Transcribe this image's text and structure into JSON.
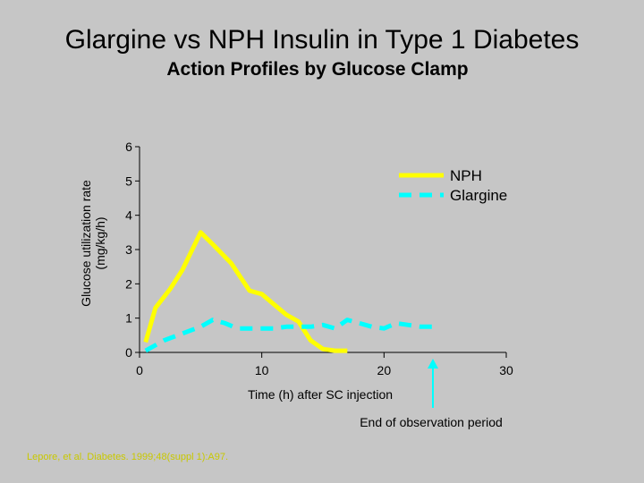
{
  "title": "Glargine vs NPH Insulin in Type 1 Diabetes",
  "subtitle": "Action Profiles by Glucose Clamp",
  "citation": "Lepore, et al. Diabetes. 1999;48(suppl 1):A97.",
  "annotation": "End of observation period",
  "colors": {
    "background": "#c6c6c6",
    "nph": "#ffff00",
    "glargine": "#00ffff",
    "arrow": "#00ffff"
  },
  "chart_data": {
    "type": "line",
    "xlabel": "Time (h) after SC injection",
    "ylabel_lines": [
      "Glucose utilization rate",
      "(mg/kg/h)"
    ],
    "xlim": [
      0,
      30
    ],
    "ylim": [
      0,
      6
    ],
    "xticks": [
      0,
      10,
      20,
      30
    ],
    "yticks": [
      0,
      1,
      2,
      3,
      4,
      5,
      6
    ],
    "legend_position": "top-right",
    "annotation_x": 24,
    "series": [
      {
        "name": "NPH",
        "style": "solid",
        "x": [
          0.5,
          1.3,
          2.5,
          3.5,
          5,
          6,
          7.5,
          9,
          10,
          11,
          12,
          13,
          14,
          15,
          16,
          17
        ],
        "y": [
          0.3,
          1.3,
          1.85,
          2.4,
          3.5,
          3.15,
          2.6,
          1.8,
          1.7,
          1.4,
          1.1,
          0.9,
          0.35,
          0.1,
          0.05,
          0.05
        ]
      },
      {
        "name": "Glargine",
        "style": "dashed",
        "x": [
          0.5,
          2,
          3.5,
          5,
          6,
          7,
          8,
          9,
          10,
          11,
          12,
          13,
          14,
          15,
          16,
          17,
          18,
          19,
          20,
          21,
          22,
          23,
          24
        ],
        "y": [
          0.05,
          0.35,
          0.55,
          0.75,
          0.95,
          0.85,
          0.7,
          0.7,
          0.7,
          0.7,
          0.75,
          0.75,
          0.75,
          0.8,
          0.7,
          0.95,
          0.85,
          0.75,
          0.7,
          0.85,
          0.8,
          0.75,
          0.75
        ]
      }
    ]
  }
}
